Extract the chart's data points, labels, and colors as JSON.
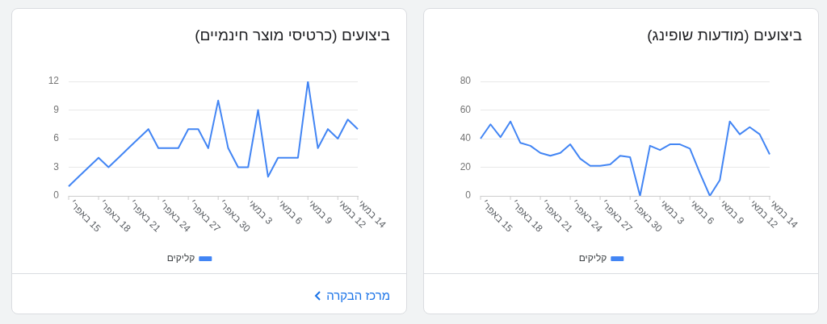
{
  "chart_data": [
    {
      "type": "line",
      "title": "ביצועים (מודעות שופינג)",
      "categories": [
        "15 באפר׳",
        null,
        null,
        "18 באפר׳",
        null,
        null,
        "21 באפר׳",
        null,
        null,
        "24 באפר׳",
        null,
        null,
        "27 באפר׳",
        null,
        null,
        "30 באפר׳",
        null,
        null,
        "3 במאי",
        null,
        null,
        "6 במאי",
        null,
        null,
        "9 במאי",
        null,
        null,
        "12 במאי",
        null,
        "14 במאי"
      ],
      "series": [
        {
          "name": "קליקים",
          "color": "#4285f4",
          "values": [
            40,
            50,
            41,
            52,
            37,
            35,
            30,
            28,
            30,
            36,
            26,
            21,
            21,
            22,
            28,
            27,
            0,
            35,
            32,
            36,
            36,
            33,
            16,
            0,
            11,
            52,
            43,
            48,
            43,
            29
          ]
        }
      ],
      "ylim": [
        0,
        80
      ],
      "yticks": [
        0,
        20,
        40,
        60,
        80
      ],
      "grid": "y",
      "legend": "bottom",
      "marker": "none"
    },
    {
      "type": "line",
      "title": "ביצועים (כרטיסי מוצר חינמיים)",
      "categories": [
        "15 באפר׳",
        null,
        null,
        "18 באפר׳",
        null,
        null,
        "21 באפר׳",
        null,
        null,
        "24 באפר׳",
        null,
        null,
        "27 באפר׳",
        null,
        null,
        "30 באפר׳",
        null,
        null,
        "3 במאי",
        null,
        null,
        "6 במאי",
        null,
        null,
        "9 במאי",
        null,
        null,
        "12 במאי",
        null,
        "14 במאי"
      ],
      "series": [
        {
          "name": "קליקים",
          "color": "#4285f4",
          "values": [
            1,
            2,
            3,
            4,
            3,
            4,
            5,
            6,
            7,
            5,
            5,
            5,
            7,
            7,
            5,
            10,
            5,
            3,
            3,
            9,
            2,
            4,
            4,
            4,
            12,
            5,
            7,
            6,
            8,
            7
          ]
        }
      ],
      "ylim": [
        0,
        12
      ],
      "yticks": [
        0,
        3,
        6,
        9,
        12
      ],
      "grid": "y",
      "legend": "bottom",
      "marker": "none",
      "annotations": [
        "מרכז הבקרה"
      ]
    }
  ]
}
